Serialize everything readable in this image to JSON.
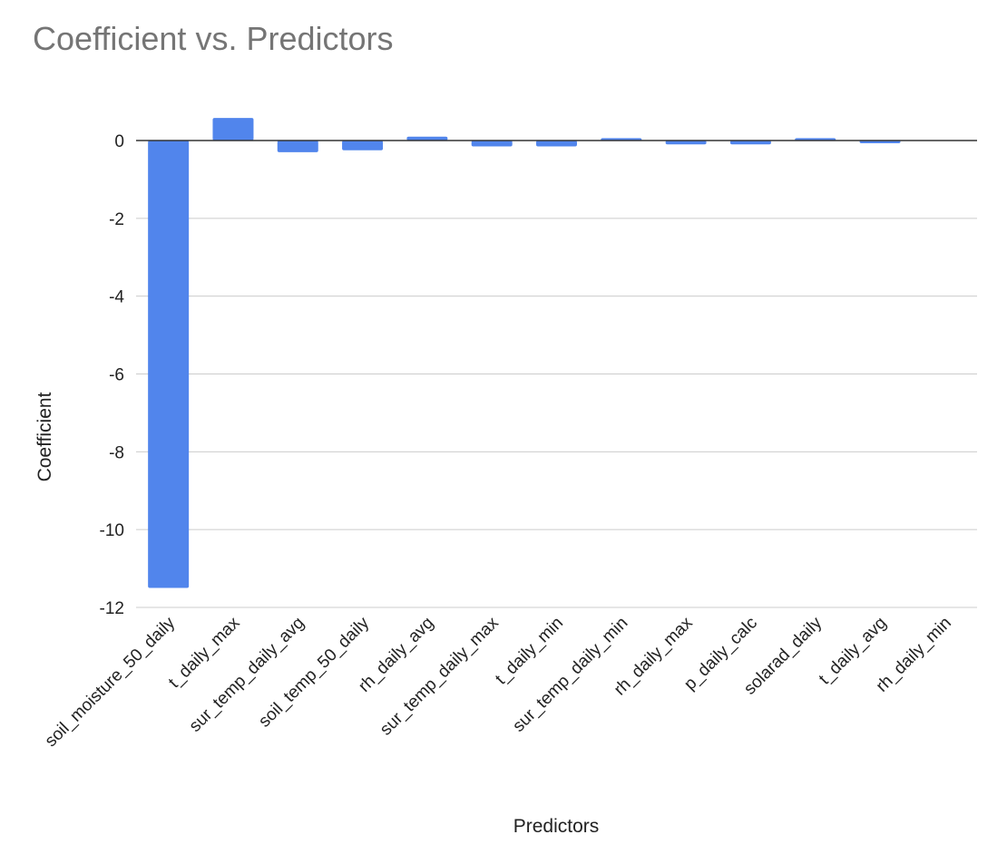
{
  "chart_data": {
    "type": "bar",
    "title": "Coefficient vs. Predictors",
    "xlabel": "Predictors",
    "ylabel": "Coefficient",
    "categories": [
      "soil_moisture_50_daily",
      "t_daily_max",
      "sur_temp_daily_avg",
      "soil_temp_50_daily",
      "rh_daily_avg",
      "sur_temp_daily_max",
      "t_daily_min",
      "sur_temp_daily_min",
      "rh_daily_max",
      "p_daily_calc",
      "solarad_daily",
      "t_daily_avg",
      "rh_daily_min"
    ],
    "values": [
      -11.5,
      0.58,
      -0.3,
      -0.25,
      0.1,
      -0.15,
      -0.15,
      0.06,
      -0.1,
      -0.1,
      0.06,
      -0.05,
      0.0
    ],
    "ylim": [
      -12,
      0
    ],
    "yticks": [
      0,
      -2,
      -4,
      -6,
      -8,
      -10,
      -12
    ],
    "grid": true,
    "legend": "none",
    "colors": {
      "bar": "#5185ec",
      "grid": "#cccccc",
      "zero_line": "#333333",
      "title": "#757575",
      "text": "#222222"
    }
  }
}
